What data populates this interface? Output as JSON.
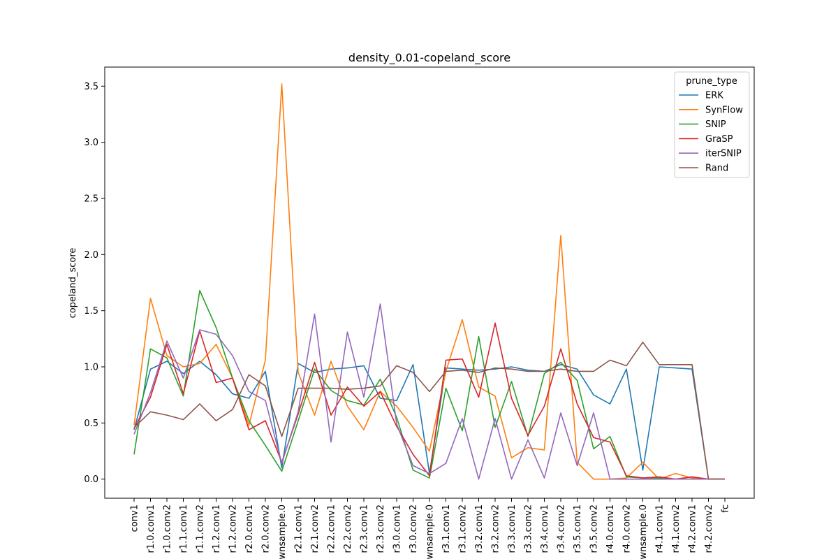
{
  "chart_data": {
    "type": "line",
    "title": "density_0.01-copeland_score",
    "xlabel": "",
    "ylabel": "copeland_score",
    "ylim": [
      -0.17,
      3.67
    ],
    "yticks": [
      0.0,
      0.5,
      1.0,
      1.5,
      2.0,
      2.5,
      3.0,
      3.5
    ],
    "ytick_labels": [
      "0.0",
      "0.5",
      "1.0",
      "1.5",
      "2.0",
      "2.5",
      "3.0",
      "3.5"
    ],
    "legend_title": "prune_type",
    "legend_position": "top-right",
    "categories": [
      "conv1",
      "r1.0.conv1",
      "r1.0.conv2",
      "r1.1.conv1",
      "r1.1.conv2",
      "r1.2.conv1",
      "r1.2.conv2",
      "r2.0.conv1",
      "r2.0.conv2",
      "wnsample.0",
      "r2.1.conv1",
      "r2.1.conv2",
      "r2.2.conv1",
      "r2.2.conv2",
      "r2.3.conv1",
      "r2.3.conv2",
      "r3.0.conv1",
      "r3.0.conv2",
      "wnsample.0",
      "r3.1.conv1",
      "r3.1.conv2",
      "r3.2.conv1",
      "r3.2.conv2",
      "r3.3.conv1",
      "r3.3.conv2",
      "r3.4.conv1",
      "r3.4.conv2",
      "r3.5.conv1",
      "r3.5.conv2",
      "r4.0.conv1",
      "r4.0.conv2",
      "wnsample.0",
      "r4.1.conv1",
      "r4.1.conv2",
      "r4.2.conv1",
      "r4.2.conv2",
      "fc"
    ],
    "series": [
      {
        "name": "ERK",
        "color": "#1f77b4",
        "values": [
          0.44,
          0.98,
          1.05,
          0.94,
          1.05,
          0.93,
          0.76,
          0.72,
          0.96,
          0.1,
          1.03,
          0.95,
          0.98,
          0.99,
          1.01,
          0.72,
          0.7,
          1.02,
          0.05,
          0.99,
          0.98,
          0.97,
          0.98,
          1.0,
          0.97,
          0.96,
          1.02,
          0.98,
          0.75,
          0.67,
          0.98,
          0.08,
          1.0,
          0.99,
          0.98,
          0.0,
          0.0
        ]
      },
      {
        "name": "SynFlow",
        "color": "#ff7f0e",
        "values": [
          0.48,
          1.61,
          1.1,
          1.0,
          1.03,
          1.2,
          0.9,
          0.48,
          1.06,
          3.52,
          0.95,
          0.57,
          1.05,
          0.65,
          0.44,
          0.78,
          0.65,
          0.46,
          0.25,
          0.96,
          1.42,
          0.82,
          0.74,
          0.19,
          0.28,
          0.26,
          2.17,
          0.15,
          0.0,
          0.0,
          0.01,
          0.15,
          0.0,
          0.05,
          0.01,
          0.0,
          0.0
        ]
      },
      {
        "name": "SNIP",
        "color": "#2ca02c",
        "values": [
          0.22,
          1.16,
          1.08,
          0.74,
          1.68,
          1.35,
          0.9,
          0.52,
          0.3,
          0.07,
          0.52,
          0.98,
          0.79,
          0.7,
          0.66,
          0.89,
          0.55,
          0.08,
          0.01,
          0.81,
          0.43,
          1.27,
          0.46,
          0.87,
          0.38,
          0.94,
          1.04,
          0.88,
          0.27,
          0.38,
          0.02,
          0.01,
          0.01,
          0.0,
          0.0,
          0.0,
          0.0
        ]
      },
      {
        "name": "GraSP",
        "color": "#d62728",
        "values": [
          0.45,
          0.73,
          1.2,
          0.76,
          1.32,
          0.86,
          0.9,
          0.44,
          0.52,
          0.15,
          0.58,
          1.04,
          0.57,
          0.82,
          0.65,
          0.78,
          0.47,
          0.22,
          0.03,
          1.06,
          1.07,
          0.73,
          1.39,
          0.72,
          0.39,
          0.65,
          1.16,
          0.67,
          0.37,
          0.33,
          0.03,
          0.01,
          0.02,
          0.0,
          0.02,
          0.0,
          0.0
        ]
      },
      {
        "name": "iterSNIP",
        "color": "#9467bd",
        "values": [
          0.4,
          0.77,
          1.23,
          0.9,
          1.33,
          1.29,
          1.1,
          0.78,
          0.7,
          0.14,
          0.6,
          1.47,
          0.33,
          1.31,
          0.73,
          1.56,
          0.49,
          0.12,
          0.05,
          0.14,
          0.54,
          0.0,
          0.54,
          0.0,
          0.35,
          0.01,
          0.59,
          0.12,
          0.59,
          0.0,
          0.0,
          0.0,
          0.0,
          0.0,
          0.0,
          0.0,
          0.0
        ]
      },
      {
        "name": "Rand",
        "color": "#8c564b",
        "values": [
          0.46,
          0.6,
          0.57,
          0.53,
          0.67,
          0.52,
          0.62,
          0.93,
          0.83,
          0.38,
          0.81,
          0.81,
          0.81,
          0.8,
          0.81,
          0.83,
          1.01,
          0.95,
          0.78,
          0.96,
          0.97,
          0.95,
          0.99,
          0.98,
          0.96,
          0.96,
          0.98,
          0.96,
          0.96,
          1.06,
          1.01,
          1.22,
          1.02,
          1.02,
          1.02,
          0.0,
          0.0
        ]
      }
    ]
  }
}
